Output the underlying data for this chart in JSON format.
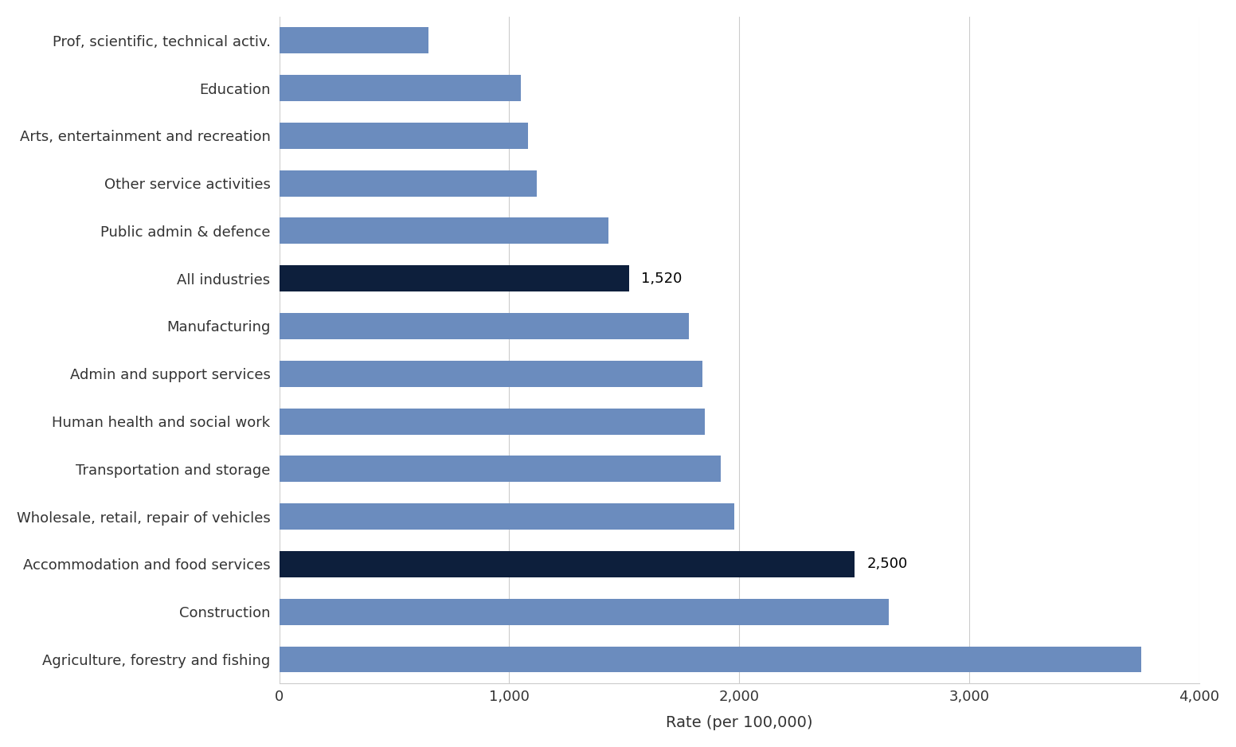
{
  "categories": [
    "Agriculture, forestry and fishing",
    "Construction",
    "Accommodation and food services",
    "Wholesale, retail, repair of vehicles",
    "Transportation and storage",
    "Human health and social work",
    "Admin and support services",
    "Manufacturing",
    "All industries",
    "Public admin & defence",
    "Other service activities",
    "Arts, entertainment and recreation",
    "Education",
    "Prof, scientific, technical activ."
  ],
  "values": [
    3750,
    2650,
    2500,
    1980,
    1920,
    1850,
    1840,
    1780,
    1520,
    1430,
    1120,
    1080,
    1050,
    650
  ],
  "bar_colors": [
    "#6b8cbe",
    "#6b8cbe",
    "#0d1f3c",
    "#6b8cbe",
    "#6b8cbe",
    "#6b8cbe",
    "#6b8cbe",
    "#6b8cbe",
    "#0d1f3c",
    "#6b8cbe",
    "#6b8cbe",
    "#6b8cbe",
    "#6b8cbe",
    "#6b8cbe"
  ],
  "annotations": [
    {
      "index": 8,
      "text": "1,520",
      "value": 1520
    },
    {
      "index": 2,
      "text": "2,500",
      "value": 2500
    }
  ],
  "xlabel": "Rate (per 100,000)",
  "xlim": [
    0,
    4000
  ],
  "xticks": [
    0,
    1000,
    2000,
    3000,
    4000
  ],
  "xtick_labels": [
    "0",
    "1,000",
    "2,000",
    "3,000",
    "4,000"
  ],
  "background_color": "#ffffff",
  "grid_color": "#cccccc",
  "bar_height": 0.55,
  "label_fontsize": 13,
  "xlabel_fontsize": 14,
  "annotation_fontsize": 13
}
